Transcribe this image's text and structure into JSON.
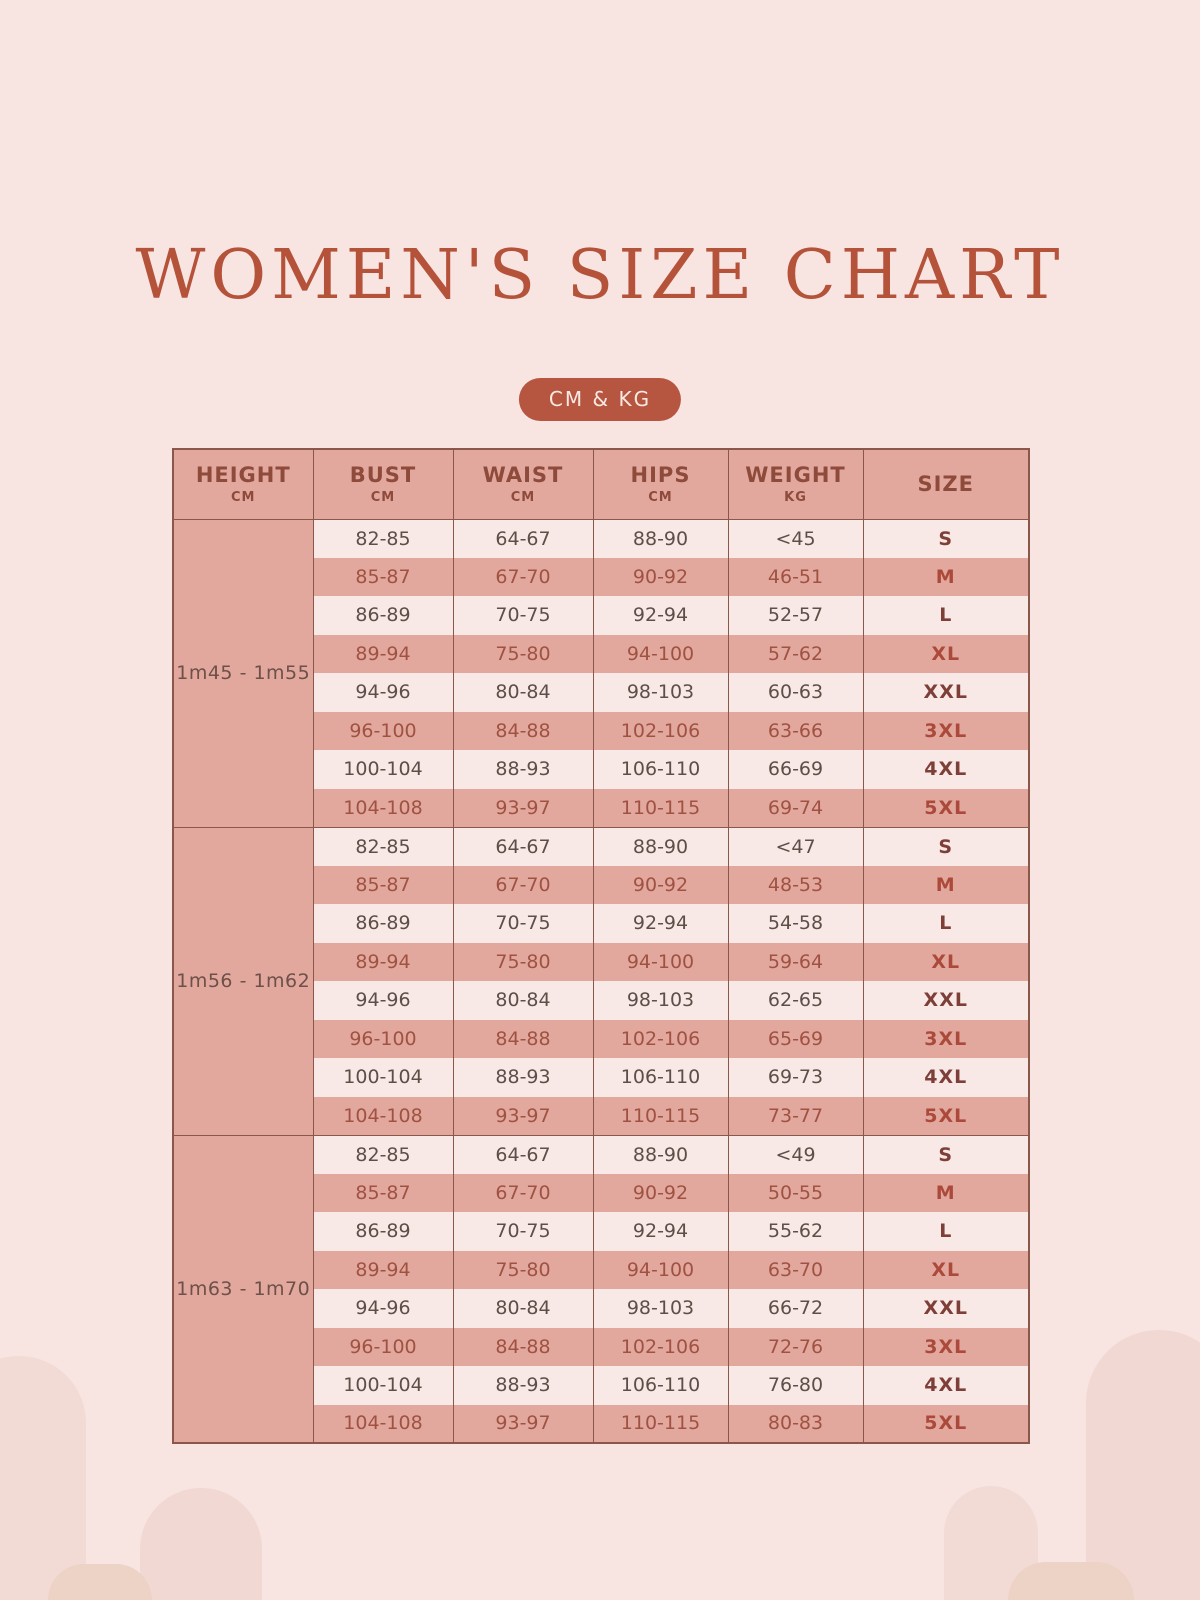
{
  "page": {
    "title": "WOMEN'S SIZE CHART",
    "badge": "CM & KG"
  },
  "colors": {
    "background": "#f8e4e1",
    "accent_terracotta": "#b5523a",
    "badge_background": "#b65640",
    "row_dark": "#e2a89d",
    "row_light": "#f9e9e6",
    "table_border": "#8a584a"
  },
  "table": {
    "headers": [
      {
        "label": "HEIGHT",
        "unit": "CM"
      },
      {
        "label": "BUST",
        "unit": "CM"
      },
      {
        "label": "WAIST",
        "unit": "CM"
      },
      {
        "label": "HIPS",
        "unit": "CM"
      },
      {
        "label": "WEIGHT",
        "unit": "KG"
      },
      {
        "label": "SIZE",
        "unit": ""
      }
    ],
    "groups": [
      {
        "height": "1m45 - 1m55",
        "rows": [
          {
            "bust": "82-85",
            "waist": "64-67",
            "hips": "88-90",
            "weight": "<45",
            "size": "S"
          },
          {
            "bust": "85-87",
            "waist": "67-70",
            "hips": "90-92",
            "weight": "46-51",
            "size": "M"
          },
          {
            "bust": "86-89",
            "waist": "70-75",
            "hips": "92-94",
            "weight": "52-57",
            "size": "L"
          },
          {
            "bust": "89-94",
            "waist": "75-80",
            "hips": "94-100",
            "weight": "57-62",
            "size": "XL"
          },
          {
            "bust": "94-96",
            "waist": "80-84",
            "hips": "98-103",
            "weight": "60-63",
            "size": "XXL"
          },
          {
            "bust": "96-100",
            "waist": "84-88",
            "hips": "102-106",
            "weight": "63-66",
            "size": "3XL"
          },
          {
            "bust": "100-104",
            "waist": "88-93",
            "hips": "106-110",
            "weight": "66-69",
            "size": "4XL"
          },
          {
            "bust": "104-108",
            "waist": "93-97",
            "hips": "110-115",
            "weight": "69-74",
            "size": "5XL"
          }
        ]
      },
      {
        "height": "1m56 - 1m62",
        "rows": [
          {
            "bust": "82-85",
            "waist": "64-67",
            "hips": "88-90",
            "weight": "<47",
            "size": "S"
          },
          {
            "bust": "85-87",
            "waist": "67-70",
            "hips": "90-92",
            "weight": "48-53",
            "size": "M"
          },
          {
            "bust": "86-89",
            "waist": "70-75",
            "hips": "92-94",
            "weight": "54-58",
            "size": "L"
          },
          {
            "bust": "89-94",
            "waist": "75-80",
            "hips": "94-100",
            "weight": "59-64",
            "size": "XL"
          },
          {
            "bust": "94-96",
            "waist": "80-84",
            "hips": "98-103",
            "weight": "62-65",
            "size": "XXL"
          },
          {
            "bust": "96-100",
            "waist": "84-88",
            "hips": "102-106",
            "weight": "65-69",
            "size": "3XL"
          },
          {
            "bust": "100-104",
            "waist": "88-93",
            "hips": "106-110",
            "weight": "69-73",
            "size": "4XL"
          },
          {
            "bust": "104-108",
            "waist": "93-97",
            "hips": "110-115",
            "weight": "73-77",
            "size": "5XL"
          }
        ]
      },
      {
        "height": "1m63 - 1m70",
        "rows": [
          {
            "bust": "82-85",
            "waist": "64-67",
            "hips": "88-90",
            "weight": "<49",
            "size": "S"
          },
          {
            "bust": "85-87",
            "waist": "67-70",
            "hips": "90-92",
            "weight": "50-55",
            "size": "M"
          },
          {
            "bust": "86-89",
            "waist": "70-75",
            "hips": "92-94",
            "weight": "55-62",
            "size": "L"
          },
          {
            "bust": "89-94",
            "waist": "75-80",
            "hips": "94-100",
            "weight": "63-70",
            "size": "XL"
          },
          {
            "bust": "94-96",
            "waist": "80-84",
            "hips": "98-103",
            "weight": "66-72",
            "size": "XXL"
          },
          {
            "bust": "96-100",
            "waist": "84-88",
            "hips": "102-106",
            "weight": "72-76",
            "size": "3XL"
          },
          {
            "bust": "100-104",
            "waist": "88-93",
            "hips": "106-110",
            "weight": "76-80",
            "size": "4XL"
          },
          {
            "bust": "104-108",
            "waist": "93-97",
            "hips": "110-115",
            "weight": "80-83",
            "size": "5XL"
          }
        ]
      }
    ]
  }
}
